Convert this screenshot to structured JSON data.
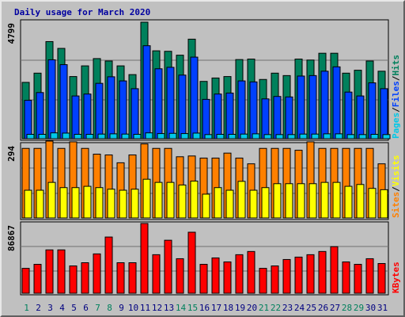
{
  "chart_data": {
    "title": "Daily usage for March 2020",
    "categories": [
      "1",
      "2",
      "3",
      "4",
      "5",
      "6",
      "7",
      "8",
      "9",
      "10",
      "11",
      "12",
      "13",
      "14",
      "15",
      "16",
      "17",
      "18",
      "19",
      "20",
      "21",
      "22",
      "23",
      "24",
      "25",
      "26",
      "27",
      "28",
      "29",
      "30",
      "31"
    ],
    "weekend_days": [
      "1",
      "7",
      "8",
      "14",
      "15",
      "21",
      "22",
      "28",
      "29"
    ],
    "colors": {
      "title": "#0000a0",
      "hits": "#00805c",
      "files": "#0040ff",
      "pages": "#00c8e8",
      "sites": "#ff8000",
      "visits": "#ffff00",
      "kbytes": "#ff0000",
      "weekend": "#00805c",
      "weekday": "#000080",
      "background": "#c0c0c0"
    },
    "panels": [
      {
        "type": "bar",
        "ymax_label": "4799",
        "ymax": 4799,
        "legend_parts": [
          "Pages",
          "Files",
          "Hits"
        ],
        "series": [
          {
            "name": "Hits",
            "values": [
              2320,
              2700,
              4000,
              3720,
              2560,
              3000,
              3300,
              3200,
              3000,
              2640,
              4799,
              3620,
              3600,
              3440,
              4100,
              2360,
              2500,
              2560,
              3260,
              3280,
              2440,
              2700,
              2600,
              3280,
              3240,
              3520,
              3520,
              2700,
              2820,
              3200,
              2780
            ]
          },
          {
            "name": "Files",
            "values": [
              1580,
              1900,
              3250,
              3050,
              1760,
              1840,
              2280,
              2550,
              2380,
              2060,
              3830,
              2880,
              2940,
              2620,
              3360,
              1620,
              1840,
              1880,
              2380,
              2340,
              1640,
              1740,
              1720,
              2580,
              2600,
              2780,
              2960,
              1920,
              1760,
              2300,
              2060
            ]
          },
          {
            "name": "Pages",
            "values": [
              180,
              180,
              240,
              230,
              180,
              180,
              190,
              200,
              190,
              180,
              240,
              210,
              220,
              210,
              230,
              170,
              180,
              180,
              190,
              200,
              170,
              170,
              170,
              190,
              190,
              200,
              200,
              170,
              170,
              180,
              170
            ]
          }
        ]
      },
      {
        "type": "bar",
        "ymax_label": "294",
        "ymax": 294,
        "legend_parts": [
          "Sites",
          "Visits"
        ],
        "series": [
          {
            "name": "Sites",
            "values": [
              266,
              266,
              294,
              266,
              291,
              266,
              244,
              241,
              211,
              241,
              283,
              266,
              266,
              234,
              237,
              229,
              229,
              248,
              229,
              207,
              266,
              266,
              266,
              259,
              291,
              266,
              266,
              266,
              266,
              266,
              207
            ]
          },
          {
            "name": "Visits",
            "values": [
              106,
              106,
              136,
              116,
              116,
              121,
              116,
              110,
              106,
              110,
              148,
              136,
              136,
              126,
              141,
              91,
              116,
              106,
              140,
              106,
              116,
              131,
              131,
              131,
              131,
              136,
              136,
              121,
              128,
              113,
              108
            ]
          }
        ]
      },
      {
        "type": "bar",
        "ymax_label": "86867",
        "ymax": 86867,
        "legend_parts": [
          "KBytes"
        ],
        "series": [
          {
            "name": "KBytes",
            "values": [
              31000,
              36000,
              54000,
              54000,
              34000,
              38000,
              49000,
              70000,
              38000,
              38000,
              86867,
              48000,
              66000,
              43000,
              76000,
              36000,
              44000,
              39000,
              48000,
              52000,
              31000,
              34000,
              42000,
              45000,
              48000,
              52000,
              58000,
              39000,
              36000,
              43000,
              37000
            ]
          }
        ]
      }
    ]
  }
}
